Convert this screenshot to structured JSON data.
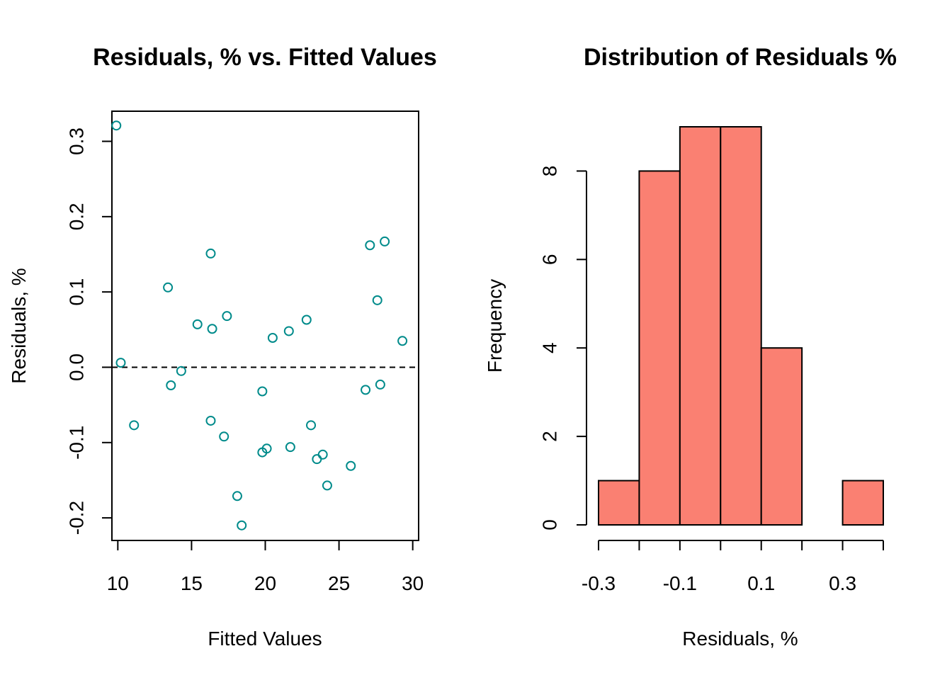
{
  "chart_data": [
    {
      "type": "scatter",
      "title": "Residuals, % vs. Fitted Values",
      "xlabel": "Fitted Values",
      "ylabel": "Residuals, %",
      "xlim": [
        9.6,
        30.4
      ],
      "ylim": [
        -0.23,
        0.34
      ],
      "xticks": [
        10,
        15,
        20,
        25,
        30
      ],
      "yticks": [
        -0.2,
        -0.1,
        0.0,
        0.1,
        0.2,
        0.3
      ],
      "ytick_labels": [
        "-0.2",
        "-0.1",
        "0.0",
        "0.1",
        "0.2",
        "0.3"
      ],
      "reference_line": {
        "y": 0,
        "style": "dashed"
      },
      "marker": "open-circle",
      "color": "#008b8b",
      "points": [
        {
          "x": 9.9,
          "y": 0.321
        },
        {
          "x": 10.2,
          "y": 0.006
        },
        {
          "x": 11.1,
          "y": -0.077
        },
        {
          "x": 13.4,
          "y": 0.106
        },
        {
          "x": 13.6,
          "y": -0.024
        },
        {
          "x": 14.3,
          "y": -0.005
        },
        {
          "x": 15.4,
          "y": 0.057
        },
        {
          "x": 16.3,
          "y": 0.151
        },
        {
          "x": 16.3,
          "y": -0.071
        },
        {
          "x": 16.4,
          "y": 0.051
        },
        {
          "x": 17.2,
          "y": -0.092
        },
        {
          "x": 17.4,
          "y": 0.068
        },
        {
          "x": 18.1,
          "y": -0.171
        },
        {
          "x": 18.4,
          "y": -0.21
        },
        {
          "x": 19.8,
          "y": -0.032
        },
        {
          "x": 19.8,
          "y": -0.113
        },
        {
          "x": 20.1,
          "y": -0.108
        },
        {
          "x": 20.5,
          "y": 0.039
        },
        {
          "x": 21.6,
          "y": 0.048
        },
        {
          "x": 21.7,
          "y": -0.106
        },
        {
          "x": 22.8,
          "y": 0.063
        },
        {
          "x": 23.1,
          "y": -0.077
        },
        {
          "x": 23.5,
          "y": -0.122
        },
        {
          "x": 23.9,
          "y": -0.116
        },
        {
          "x": 24.2,
          "y": -0.157
        },
        {
          "x": 25.8,
          "y": -0.131
        },
        {
          "x": 26.8,
          "y": -0.03
        },
        {
          "x": 27.1,
          "y": 0.162
        },
        {
          "x": 27.6,
          "y": 0.089
        },
        {
          "x": 27.8,
          "y": -0.023
        },
        {
          "x": 28.1,
          "y": 0.167
        },
        {
          "x": 29.3,
          "y": 0.035
        }
      ]
    },
    {
      "type": "bar",
      "subtype": "histogram",
      "title": "Distribution of Residuals %",
      "xlabel": "Residuals, %",
      "ylabel": "Frequency",
      "xlim": [
        -0.3,
        0.4
      ],
      "ylim": [
        0,
        9
      ],
      "xticks": [
        -0.3,
        -0.1,
        0.1,
        0.3
      ],
      "xtick_labels": [
        "-0.3",
        "-0.1",
        "0.1",
        "0.3"
      ],
      "yticks": [
        0,
        2,
        4,
        6,
        8
      ],
      "ytick_labels": [
        "0",
        "2",
        "4",
        "6",
        "8"
      ],
      "bin_edges": [
        -0.3,
        -0.2,
        -0.1,
        0.0,
        0.1,
        0.2,
        0.3,
        0.4
      ],
      "counts": [
        1,
        8,
        9,
        9,
        4,
        0,
        1
      ],
      "color": "#fa8072"
    }
  ]
}
